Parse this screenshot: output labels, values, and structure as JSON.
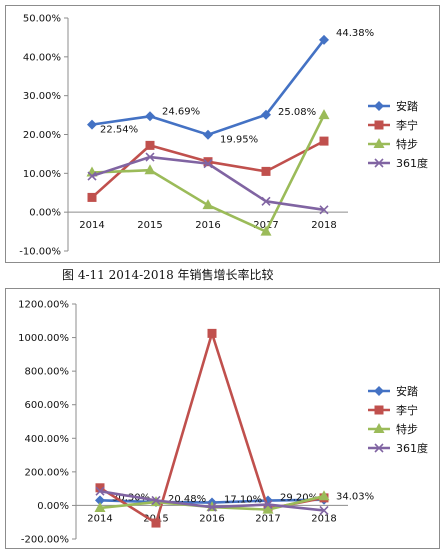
{
  "caption": "图 4-11    2014-2018 年销售增长率比较",
  "colors": {
    "安踏": "#4472C4",
    "李宁": "#C0504D",
    "特步": "#9BBB59",
    "361度": "#8064A2"
  },
  "chart_data": [
    {
      "type": "line",
      "x": [
        "2014",
        "2015",
        "2016",
        "2017",
        "2018"
      ],
      "ylim": [
        -10,
        50
      ],
      "yticks": [
        -10,
        0,
        10,
        20,
        30,
        40,
        50
      ],
      "ytick_labels": [
        "-10.00%",
        "0.00%",
        "10.00%",
        "20.00%",
        "30.00%",
        "40.00%",
        "50.00%"
      ],
      "legend_position": "right",
      "series": [
        {
          "name": "安踏",
          "marker": "diamond",
          "values": [
            22.54,
            24.69,
            19.95,
            25.08,
            44.38
          ],
          "labels": [
            "22.54%",
            "24.69%",
            "19.95%",
            "25.08%",
            "44.38%"
          ]
        },
        {
          "name": "李宁",
          "marker": "square",
          "values": [
            3.8,
            17.2,
            13.0,
            10.5,
            18.3
          ]
        },
        {
          "name": "特步",
          "marker": "triangle",
          "values": [
            10.2,
            10.8,
            1.8,
            -5.0,
            25.0
          ]
        },
        {
          "name": "361度",
          "marker": "x",
          "values": [
            9.3,
            14.2,
            12.5,
            2.8,
            0.6
          ]
        }
      ]
    },
    {
      "type": "line",
      "x": [
        "2014",
        "2015",
        "2016",
        "2017",
        "2018"
      ],
      "ylim": [
        -200,
        1200
      ],
      "yticks": [
        -200,
        0,
        200,
        400,
        600,
        800,
        1000,
        1200
      ],
      "ytick_labels": [
        "-200.00%",
        "0.00%",
        "200.00%",
        "400.00%",
        "600.00%",
        "800.00%",
        "1000.00%",
        "1200.00%"
      ],
      "legend_position": "right",
      "series": [
        {
          "name": "安踏",
          "marker": "diamond",
          "values": [
            30.3,
            20.48,
            17.1,
            29.2,
            34.03
          ],
          "labels": [
            "30.30%",
            "20.48%",
            "17.10%",
            "29.20%",
            "34.03%"
          ]
        },
        {
          "name": "李宁",
          "marker": "square",
          "values": [
            105,
            -105,
            1025,
            -20,
            45
          ]
        },
        {
          "name": "特步",
          "marker": "triangle",
          "values": [
            -15,
            20,
            -10,
            -25,
            55
          ]
        },
        {
          "name": "361度",
          "marker": "x",
          "values": [
            85,
            30,
            -10,
            5,
            -30
          ]
        }
      ]
    }
  ]
}
